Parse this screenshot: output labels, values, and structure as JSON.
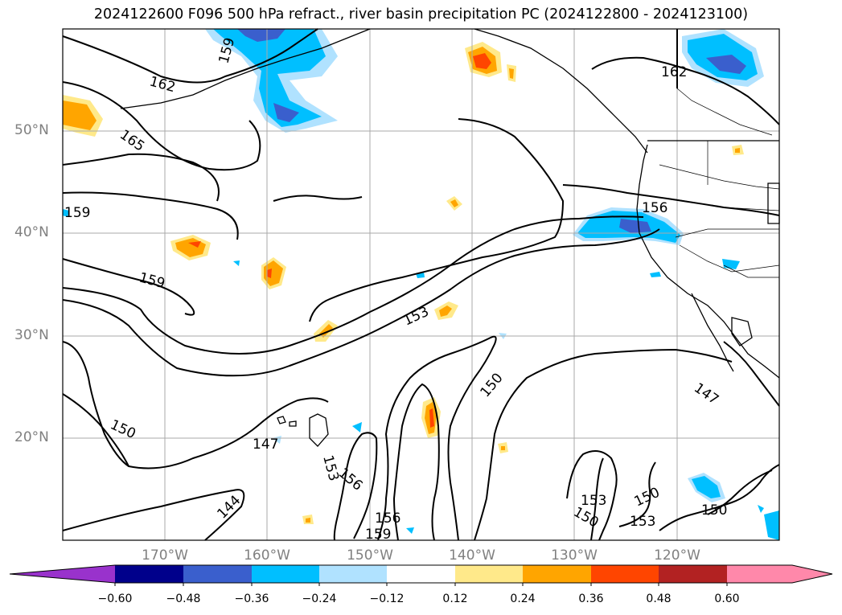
{
  "title": "2024122600 F096 500 hPa refract., river basin precipitation PC (2024122800 - 2024123100)",
  "map": {
    "lat_labels": [
      "50°N",
      "40°N",
      "30°N",
      "20°N"
    ],
    "lon_labels": [
      "170°W",
      "160°W",
      "150°W",
      "140°W",
      "130°W",
      "120°W"
    ],
    "contour_labels": [
      "162",
      "165",
      "159",
      "159",
      "159",
      "153",
      "150",
      "150",
      "147",
      "153",
      "156",
      "156",
      "159",
      "144",
      "153",
      "150",
      "150",
      "153",
      "150",
      "147",
      "156",
      "162"
    ]
  },
  "colorbar": {
    "labels": [
      "−0.60",
      "−0.48",
      "−0.36",
      "−0.24",
      "−0.12",
      "0.12",
      "0.24",
      "0.36",
      "0.48",
      "0.60"
    ],
    "colors": [
      "#9932cc",
      "#00008b",
      "#3a5fcd",
      "#00bfff",
      "#b0e2ff",
      "#ffffff",
      "#ffe98a",
      "#ffa500",
      "#ff4500",
      "#b22222",
      "#ff88aa",
      "#ff88aa"
    ]
  }
}
